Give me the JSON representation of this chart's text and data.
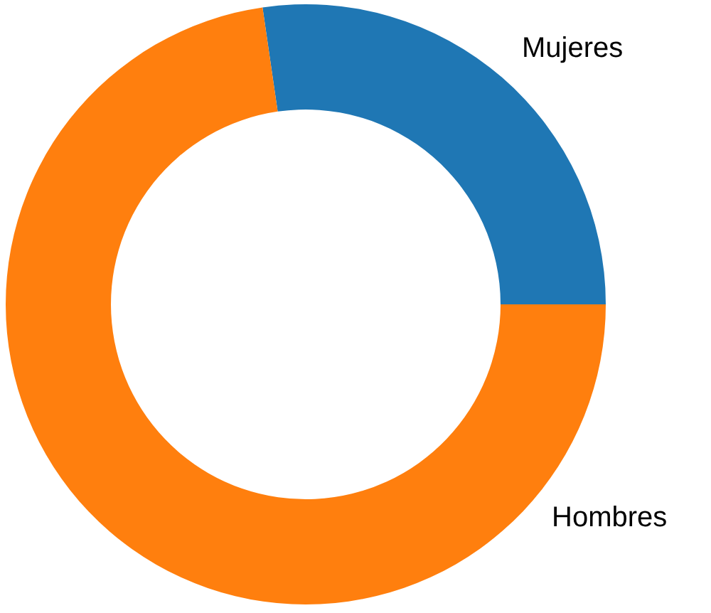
{
  "chart_data": {
    "type": "donut",
    "categories": [
      "Mujeres",
      "Hombres"
    ],
    "values": [
      27.3,
      72.7
    ],
    "colors": [
      "#1f77b4",
      "#ff7f0e"
    ],
    "legend": false
  }
}
